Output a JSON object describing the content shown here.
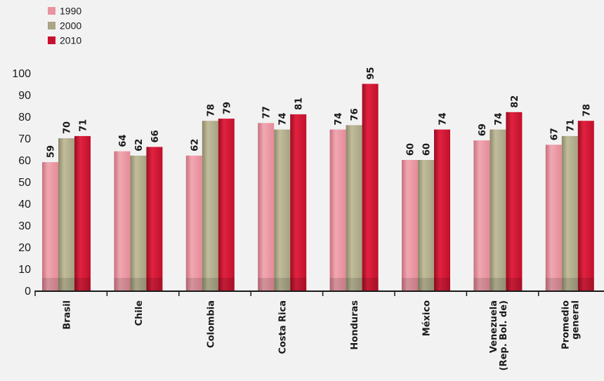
{
  "chart_data": {
    "type": "bar",
    "categories": [
      [
        "Brasil"
      ],
      [
        "Chile"
      ],
      [
        "Colombia"
      ],
      [
        "Costa Rica"
      ],
      [
        "Honduras"
      ],
      [
        "México"
      ],
      [
        "Venezuela",
        "(Rep. Bol. de)"
      ],
      [
        "Promedio",
        "general"
      ]
    ],
    "series": [
      {
        "name": "1990",
        "color": "#e8939f",
        "values": [
          59,
          64,
          62,
          77,
          74,
          60,
          69,
          67
        ]
      },
      {
        "name": "2000",
        "color": "#a9a585",
        "values": [
          70,
          62,
          78,
          74,
          76,
          60,
          74,
          71
        ]
      },
      {
        "name": "2010",
        "color": "#c8102e",
        "values": [
          71,
          66,
          79,
          81,
          95,
          74,
          82,
          78
        ]
      }
    ],
    "ylim": [
      0,
      100
    ],
    "yticks": [
      0,
      10,
      20,
      30,
      40,
      50,
      60,
      70,
      80,
      90,
      100
    ],
    "legend_position": "top-left",
    "grid": false
  }
}
